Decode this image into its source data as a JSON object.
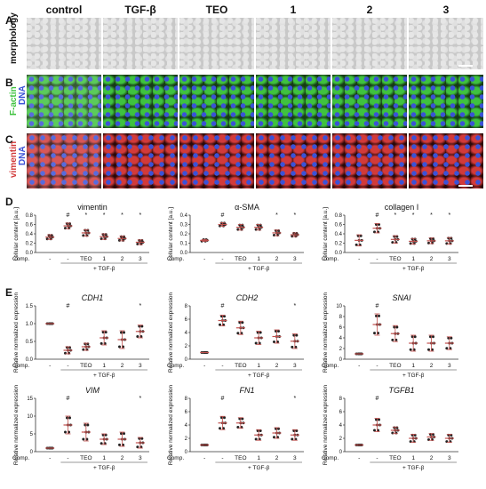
{
  "column_headers": [
    "control",
    "TGF-β",
    "TEO",
    "1",
    "2",
    "3"
  ],
  "panel_letters": [
    "A",
    "B",
    "C",
    "D",
    "E"
  ],
  "row_labels": {
    "A": "morphology",
    "B": [
      "F-actin",
      "DNA"
    ],
    "C": [
      "vimentin",
      "DNA"
    ]
  },
  "colors": {
    "morph_bg": "#c8c8c8",
    "factin": "#3fc23f",
    "dna": "#3b52d6",
    "vimentin": "#d23a3a",
    "point": "#222222",
    "errbar": "#c0504d"
  },
  "comp_label": "Comp.",
  "tgf_label": "+ TGF-β",
  "conditions": [
    "-",
    "-",
    "TEO",
    "1",
    "2",
    "3"
  ],
  "panel_D": {
    "ylabel": "cellular content [a.u.]",
    "charts": [
      {
        "title": "vimentin",
        "yticks": [
          "0.0",
          "0.2",
          "0.4",
          "0.6",
          "0.8"
        ],
        "ylim": [
          0,
          0.8
        ],
        "means": [
          0.33,
          0.57,
          0.42,
          0.34,
          0.3,
          0.22
        ],
        "sd": [
          0.05,
          0.06,
          0.07,
          0.06,
          0.05,
          0.05
        ],
        "marks": [
          "",
          "#",
          "*",
          "*",
          "*",
          "*"
        ]
      },
      {
        "title": "α-SMA",
        "yticks": [
          "0.0",
          "0.1",
          "0.2",
          "0.3",
          "0.4"
        ],
        "ylim": [
          0,
          0.4
        ],
        "means": [
          0.13,
          0.3,
          0.27,
          0.27,
          0.21,
          0.19
        ],
        "sd": [
          0.01,
          0.02,
          0.03,
          0.03,
          0.03,
          0.02
        ],
        "marks": [
          "",
          "#",
          "",
          "",
          "*",
          "*"
        ]
      },
      {
        "title": "collagen I",
        "yticks": [
          "0.0",
          "0.2",
          "0.4",
          "0.6",
          "0.8"
        ],
        "ylim": [
          0,
          0.8
        ],
        "means": [
          0.26,
          0.52,
          0.28,
          0.24,
          0.25,
          0.25
        ],
        "sd": [
          0.12,
          0.1,
          0.08,
          0.06,
          0.06,
          0.07
        ],
        "marks": [
          "",
          "#",
          "*",
          "*",
          "*",
          "*"
        ]
      }
    ]
  },
  "panel_E": {
    "ylabel": "Relative normalized expression",
    "charts": [
      {
        "title": "CDH1",
        "yticks": [
          "0.0",
          "0.5",
          "1.0",
          "1.5"
        ],
        "ylim": [
          0,
          1.5
        ],
        "means": [
          1.0,
          0.25,
          0.35,
          0.6,
          0.55,
          0.78
        ],
        "sd": [
          0.0,
          0.1,
          0.1,
          0.2,
          0.25,
          0.18
        ],
        "marks": [
          "",
          "#",
          "",
          "",
          "",
          "*"
        ]
      },
      {
        "title": "CDH2",
        "yticks": [
          "0",
          "2",
          "4",
          "6",
          "8"
        ],
        "ylim": [
          0,
          8
        ],
        "means": [
          1.0,
          5.8,
          4.7,
          3.2,
          3.4,
          2.7
        ],
        "sd": [
          0.0,
          0.8,
          1.0,
          1.0,
          1.0,
          1.1
        ],
        "marks": [
          "",
          "#",
          "",
          "",
          "",
          "*"
        ]
      },
      {
        "title": "SNAI",
        "yticks": [
          "0",
          "2",
          "4",
          "6",
          "8",
          "10"
        ],
        "ylim": [
          0,
          10
        ],
        "means": [
          1.0,
          6.5,
          4.8,
          3.0,
          3.0,
          3.0
        ],
        "sd": [
          0.0,
          2.0,
          1.5,
          1.5,
          1.5,
          1.2
        ],
        "marks": [
          "",
          "#",
          "",
          "",
          "",
          ""
        ]
      },
      {
        "title": "VIM",
        "yticks": [
          "0",
          "5",
          "10",
          "15"
        ],
        "ylim": [
          0,
          15
        ],
        "means": [
          1.0,
          7.5,
          5.5,
          3.5,
          3.5,
          2.5
        ],
        "sd": [
          0.0,
          2.5,
          2.5,
          1.5,
          2.0,
          1.5
        ],
        "marks": [
          "",
          "#",
          "",
          "",
          "",
          "*"
        ]
      },
      {
        "title": "FN1",
        "yticks": [
          "0",
          "2",
          "4",
          "6",
          "8"
        ],
        "ylim": [
          0,
          8
        ],
        "means": [
          1.0,
          4.3,
          4.3,
          2.5,
          2.8,
          2.5
        ],
        "sd": [
          0.0,
          1.0,
          0.8,
          0.8,
          0.8,
          0.8
        ],
        "marks": [
          "",
          "#",
          "",
          "",
          "",
          "*"
        ]
      },
      {
        "title": "TGFB1",
        "yticks": [
          "0",
          "2",
          "4",
          "6",
          "8"
        ],
        "ylim": [
          0,
          8
        ],
        "means": [
          1.0,
          4.0,
          3.2,
          2.0,
          2.2,
          2.0
        ],
        "sd": [
          0.0,
          1.0,
          0.5,
          0.6,
          0.5,
          0.6
        ],
        "marks": [
          "",
          "#",
          "",
          "",
          "",
          ""
        ]
      }
    ]
  }
}
